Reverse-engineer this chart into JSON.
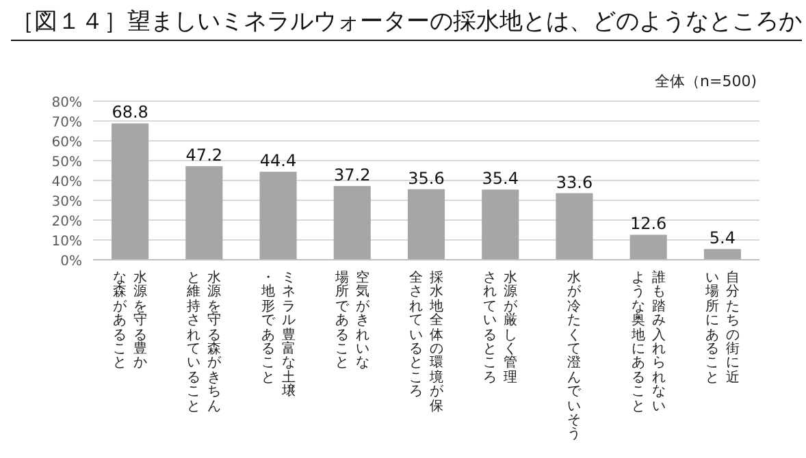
{
  "chart_data": {
    "type": "bar",
    "title": "［図１４］望ましいミネラルウォーターの採水地とは、どのようなところか",
    "annotations": [
      "全体（n=500)"
    ],
    "categories": [
      "水源を守る豊かな森があること",
      "水源を守る森がきちんと維持されていること",
      "ミネラル豊富な土壌・地形であること",
      "空気がきれいな場所であること",
      "採水地全体の環境が保全されているところ",
      "水源が厳しく管理されているところ",
      "水が冷たくて澄んでいそう",
      "誰も踏み入れられないような奥地にあること",
      "自分たちの街に近い場所にあること"
    ],
    "values": [
      68.8,
      47.2,
      44.4,
      37.2,
      35.6,
      35.4,
      33.6,
      12.6,
      5.4
    ],
    "color": "#a6a6a6",
    "data_labels": true,
    "grid": "y",
    "ylim": [
      0,
      80
    ],
    "yticks": [
      {
        "value": 0,
        "label": "0%"
      },
      {
        "value": 10,
        "label": "10%"
      },
      {
        "value": 20,
        "label": "20%"
      },
      {
        "value": 30,
        "label": "30%"
      },
      {
        "value": 40,
        "label": "40%"
      },
      {
        "value": 50,
        "label": "50%"
      },
      {
        "value": 60,
        "label": "60%"
      },
      {
        "value": 70,
        "label": "70%"
      },
      {
        "value": 80,
        "label": "80%"
      }
    ]
  }
}
